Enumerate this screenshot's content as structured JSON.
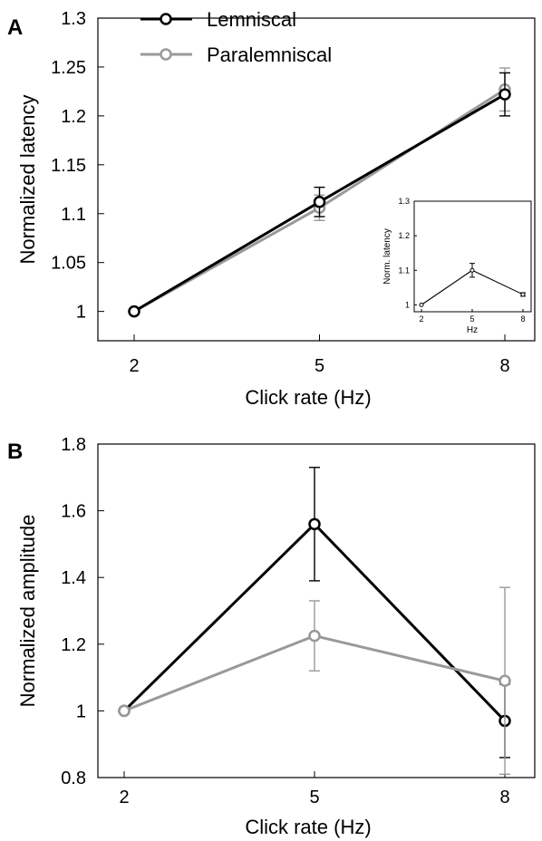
{
  "panels": [
    {
      "letter": "A"
    },
    {
      "letter": "B"
    }
  ],
  "chart_data": [
    {
      "type": "line",
      "panel": "A",
      "title": "",
      "xlabel": "Click rate (Hz)",
      "ylabel": "Normalized latency",
      "x": [
        2,
        5,
        8
      ],
      "xticks": [
        "2",
        "5",
        "8"
      ],
      "yticks": [
        "1",
        "1.05",
        "1.1",
        "1.15",
        "1.2",
        "1.25",
        "1.3"
      ],
      "ylim": [
        0.97,
        1.3
      ],
      "legend_position": "top-left",
      "series": [
        {
          "name": "Lemniscal",
          "color": "#000000",
          "values": [
            1.0,
            1.112,
            1.222
          ],
          "errors": [
            0.0,
            0.015,
            0.022
          ]
        },
        {
          "name": "Paralemniscal",
          "color": "#999999",
          "values": [
            1.0,
            1.106,
            1.227
          ],
          "errors": [
            0.0,
            0.013,
            0.022
          ]
        }
      ]
    },
    {
      "type": "line",
      "panel": "A-inset",
      "title": "",
      "xlabel": "Hz",
      "ylabel": "Norm. latency",
      "x": [
        2,
        5,
        8
      ],
      "xticks": [
        "2",
        "5",
        "8"
      ],
      "yticks": [
        "1",
        "1.1",
        "1.2",
        "1.3"
      ],
      "ylim": [
        0.98,
        1.3
      ],
      "series": [
        {
          "color": "#000000",
          "values": [
            1.0,
            1.1,
            1.03
          ],
          "errors": [
            0.0,
            0.02,
            0.005
          ]
        }
      ]
    },
    {
      "type": "line",
      "panel": "B",
      "title": "",
      "xlabel": "Click rate (Hz)",
      "ylabel": "Normalized amplitude",
      "x": [
        2,
        5,
        8
      ],
      "xticks": [
        "2",
        "5",
        "8"
      ],
      "yticks": [
        "0.8",
        "1",
        "1.2",
        "1.4",
        "1.6",
        "1.8"
      ],
      "ylim": [
        0.8,
        1.8
      ],
      "series": [
        {
          "name": "Lemniscal",
          "color": "#000000",
          "values": [
            1.0,
            1.56,
            0.97
          ],
          "errors": [
            0.0,
            0.17,
            0.11
          ]
        },
        {
          "name": "Paralemniscal",
          "color": "#999999",
          "values": [
            1.0,
            1.225,
            1.09
          ],
          "errors": [
            0.0,
            0.105,
            0.28
          ]
        }
      ]
    }
  ]
}
